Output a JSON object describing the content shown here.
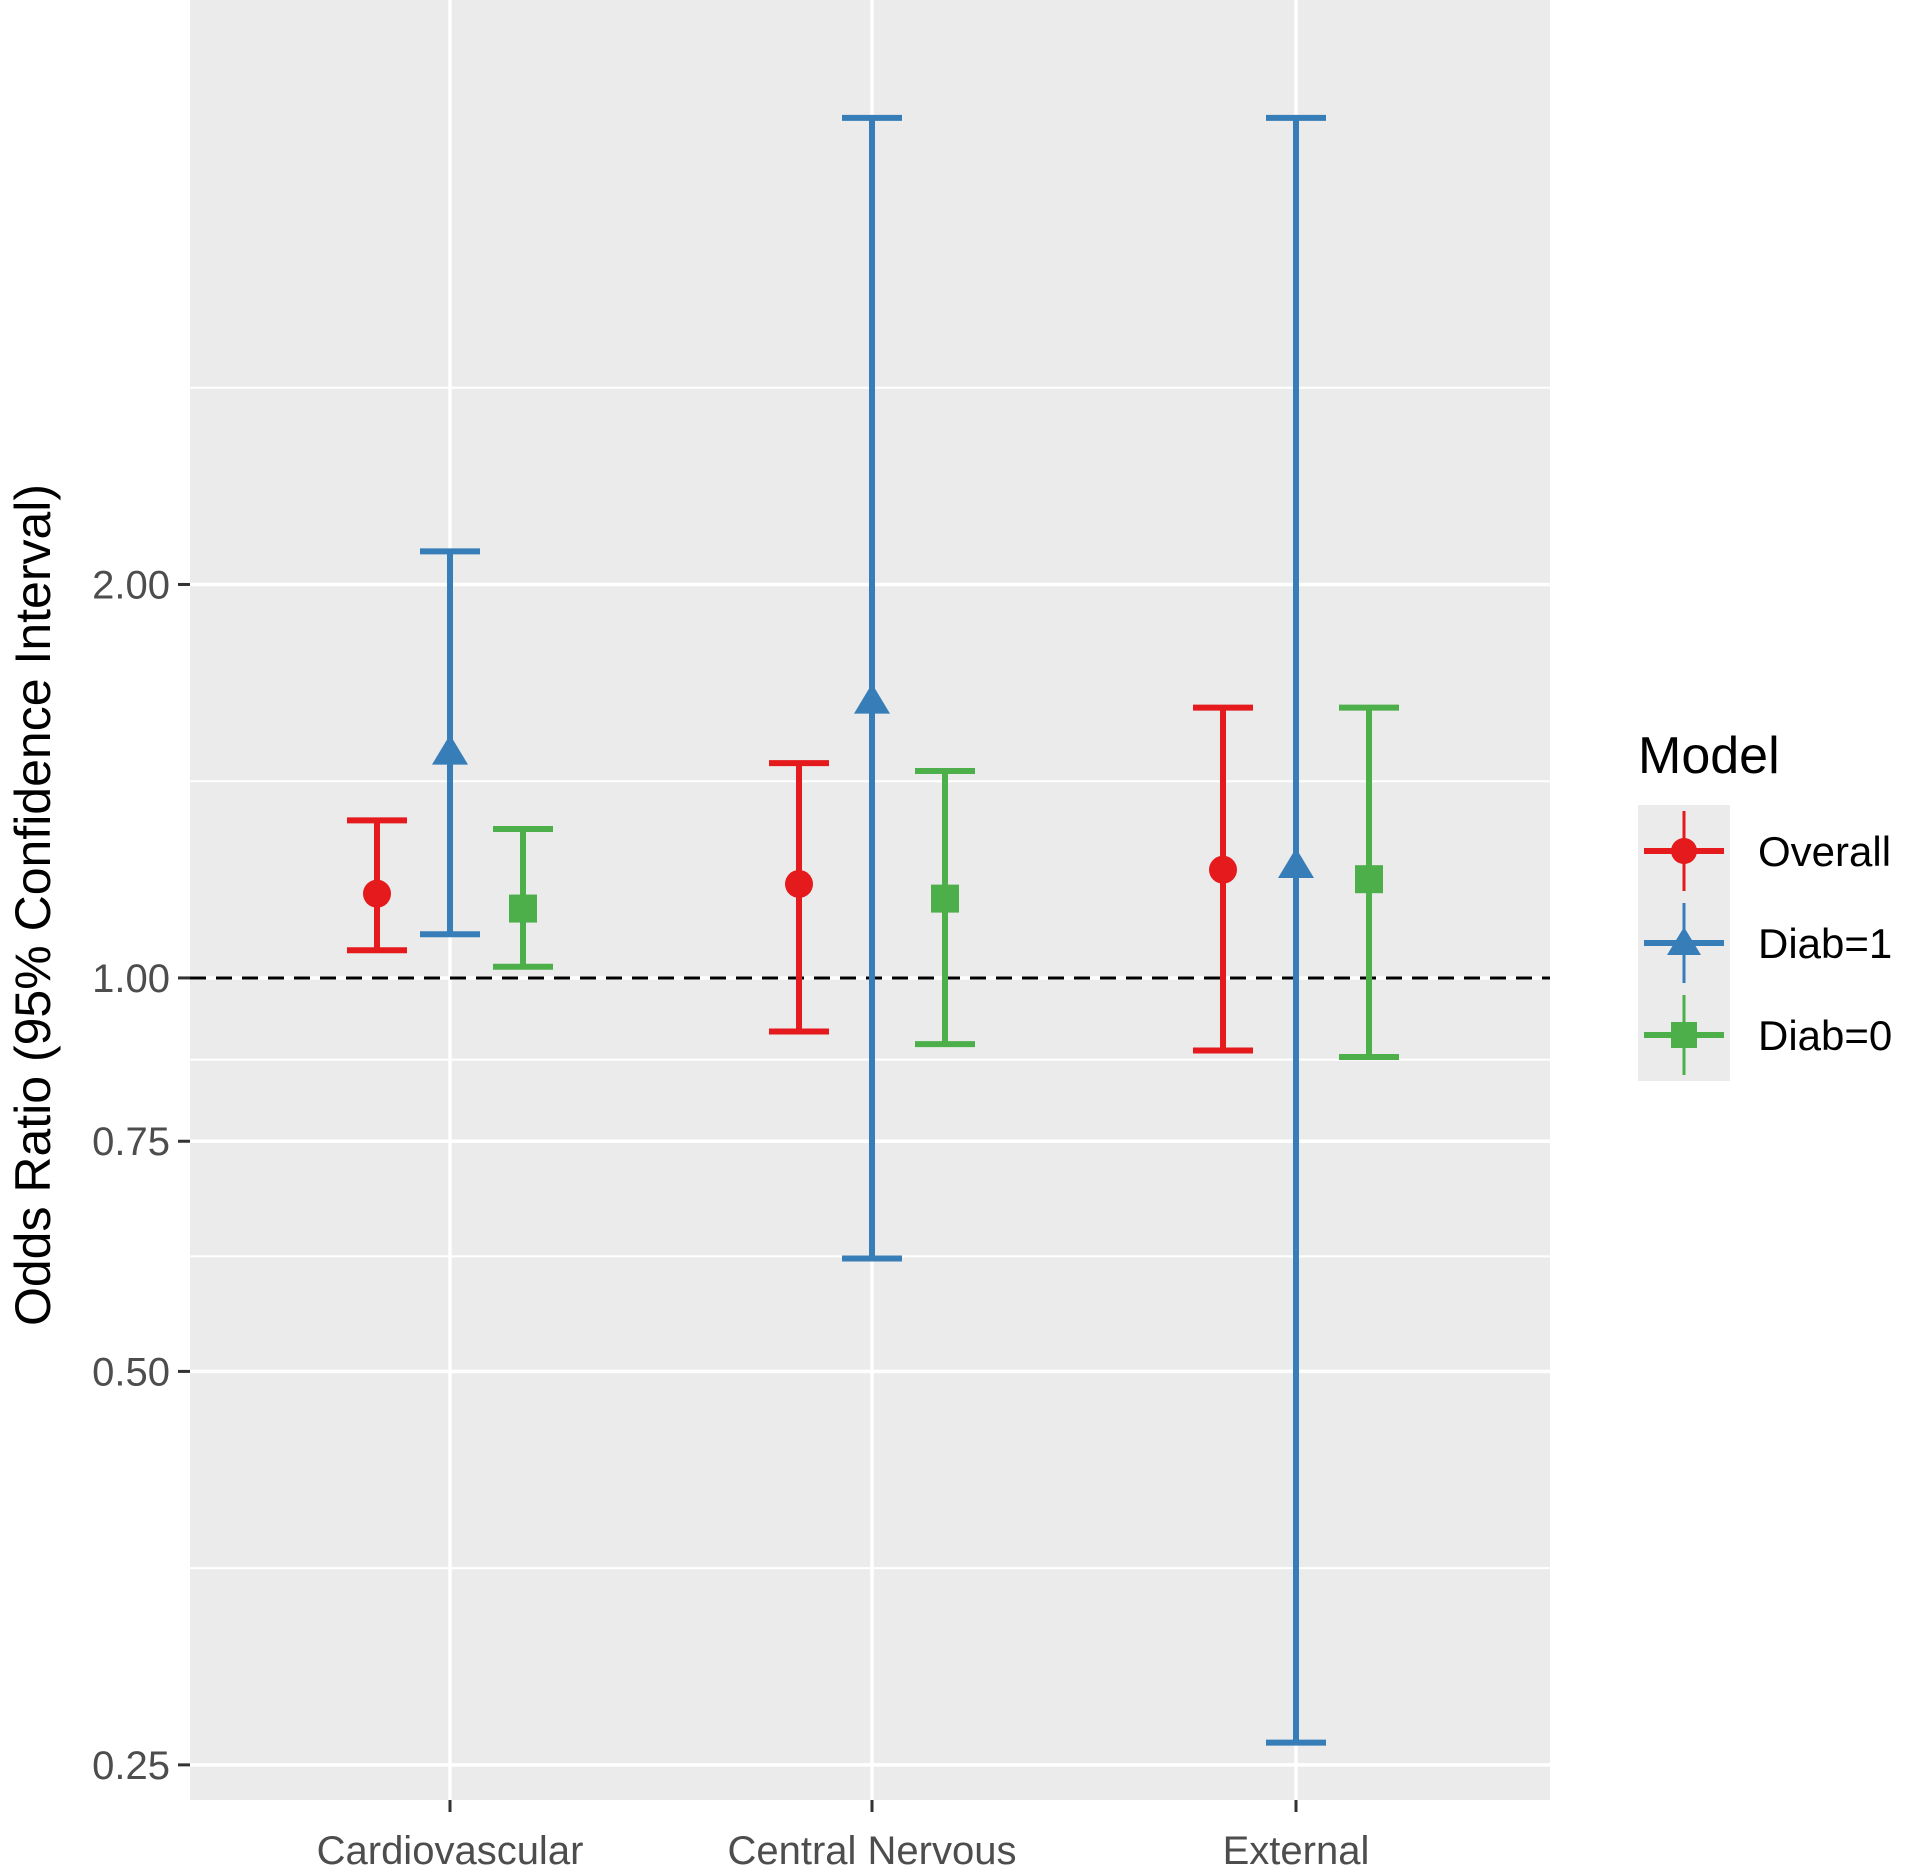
{
  "chart_data": {
    "type": "errorbar",
    "title": "",
    "xlabel": "",
    "ylabel": "Odds Ratio (95% Confidence Interval)",
    "y_scale": "log",
    "ylim": [
      0.235,
      5.6
    ],
    "y_ticks": [
      0.25,
      0.5,
      0.75,
      1.0,
      2.0
    ],
    "y_tick_labels": [
      "0.25",
      "0.50",
      "0.75",
      "1.00",
      "2.00"
    ],
    "reference_line": 1.0,
    "categories": [
      "Cardiovascular",
      "Central Nervous",
      "External"
    ],
    "legend": {
      "title": "Model",
      "placement": "right"
    },
    "series": [
      {
        "name": "Overall",
        "color": "#e41a1c",
        "marker": "circle",
        "estimate": [
          1.16,
          1.18,
          1.21
        ],
        "lower": [
          1.05,
          0.91,
          0.88
        ],
        "upper": [
          1.32,
          1.46,
          1.61
        ]
      },
      {
        "name": "Diab=1",
        "color": "#377eb8",
        "marker": "triangle",
        "estimate": [
          1.49,
          1.63,
          1.22
        ],
        "lower": [
          1.08,
          0.61,
          0.26
        ],
        "upper": [
          2.12,
          4.55,
          4.55
        ]
      },
      {
        "name": "Diab=0",
        "color": "#4daf4a",
        "marker": "square",
        "estimate": [
          1.13,
          1.15,
          1.19
        ],
        "lower": [
          1.02,
          0.89,
          0.87
        ],
        "upper": [
          1.3,
          1.44,
          1.61
        ]
      }
    ]
  }
}
